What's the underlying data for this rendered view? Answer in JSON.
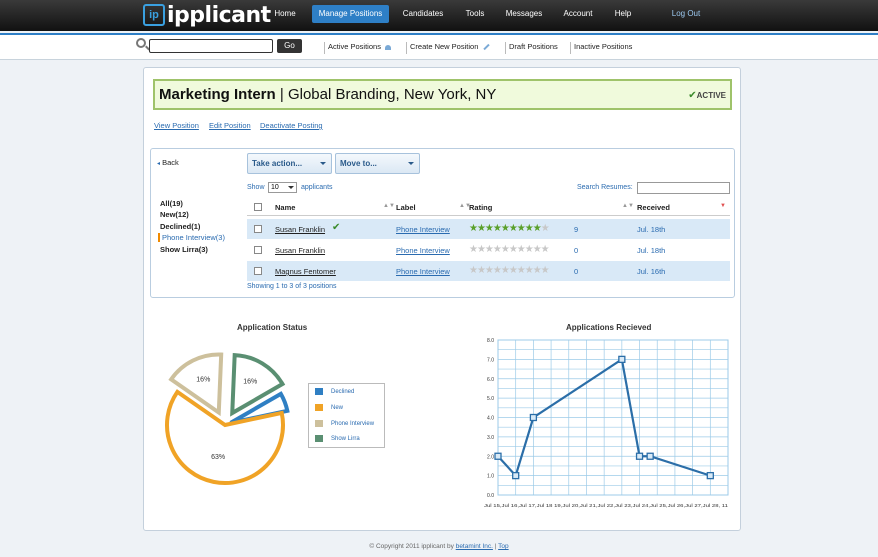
{
  "app": {
    "logo_mark": "ip",
    "logo_text": "ipplicant"
  },
  "nav": {
    "items": [
      {
        "label": "Home"
      },
      {
        "label": "Manage Positions"
      },
      {
        "label": "Candidates"
      },
      {
        "label": "Tools"
      },
      {
        "label": "Messages"
      },
      {
        "label": "Account"
      },
      {
        "label": "Help"
      }
    ],
    "logout": "Log Out"
  },
  "subnav": {
    "search_value": "",
    "go": "Go",
    "links": [
      "Active Positions",
      "Create New Position",
      "Draft Positions",
      "Inactive Positions"
    ]
  },
  "position": {
    "title": "Marketing Intern",
    "separator": "|",
    "details": "Global Branding, New York, NY",
    "status": "ACTIVE",
    "links": [
      "View Position",
      "Edit Position",
      "Deactivate Posting"
    ]
  },
  "applicants": {
    "back": "Back",
    "take_action": "Take action...",
    "move_to": "Move to...",
    "show_label": "Show",
    "show_value": "10",
    "applicants_label": "applicants",
    "search_resumes": "Search Resumes:",
    "filters": [
      "All(19)",
      "New(12)",
      "Declined(1)",
      "Phone Interview(3)",
      "Show Lirra(3)"
    ],
    "columns": [
      "Name",
      "Label",
      "Rating",
      "Received"
    ],
    "rows": [
      {
        "name": "Susan Franklin",
        "label": "Phone Interview",
        "rating": 9,
        "received": "Jul. 18th",
        "checked_mark": true
      },
      {
        "name": "Susan Franklin",
        "label": "Phone Interview",
        "rating": 0,
        "received": "Jul. 18th",
        "checked_mark": false
      },
      {
        "name": "Magnus Fentomer",
        "label": "Phone Interview",
        "rating": 0,
        "received": "Jul. 16th",
        "checked_mark": false
      }
    ],
    "showing": "Showing 1 to 3 of 3 positions"
  },
  "chart_data": [
    {
      "type": "pie",
      "title": "Application Status",
      "categories": [
        "Declined",
        "New",
        "Phone Interview",
        "Show Lirra"
      ],
      "values": [
        5,
        63,
        16,
        16
      ],
      "data_labels": [
        "",
        "63%",
        "16%",
        "16%"
      ],
      "colors": [
        "#2f7fc3",
        "#f0a326",
        "#cdc09c",
        "#5a8f72"
      ],
      "legend": "right"
    },
    {
      "type": "line",
      "title": "Applications Recieved",
      "x": [
        "Jul 15",
        "Jul 16",
        "Jul 17",
        "Jul 18",
        "Jul 19",
        "Jul 20",
        "Jul 21",
        "Jul 22",
        "Jul 23",
        "Jul 24",
        "Jul 25",
        "Jul 26",
        "Jul 27",
        "Jul 28"
      ],
      "x_tick_text": "Jul 15,Jul 16,Jul 17,Jul 18 19,Jul 20,Jul 21,Jul 22,Jul 23,Jul 24,Jul 25,Jul 26,Jul 27,Jul 28, 11",
      "y_ticks": [
        "0.0",
        "1.0",
        "2.0",
        "3.0",
        "4.0",
        "5.0",
        "6.0",
        "7.0",
        "8.0"
      ],
      "ylim": [
        0,
        8
      ],
      "grid": true,
      "series": [
        {
          "points": [
            [
              0,
              2
            ],
            [
              1,
              1
            ],
            [
              2,
              4
            ],
            [
              7,
              7
            ],
            [
              8,
              2
            ],
            [
              8.6,
              2
            ],
            [
              12,
              1
            ]
          ]
        }
      ],
      "color": "#2b6ea8"
    }
  ],
  "footer": {
    "prefix": "© Copyright 2011 ipplicant by",
    "company": "betamint Inc.",
    "sep": "|",
    "top": "Top"
  }
}
